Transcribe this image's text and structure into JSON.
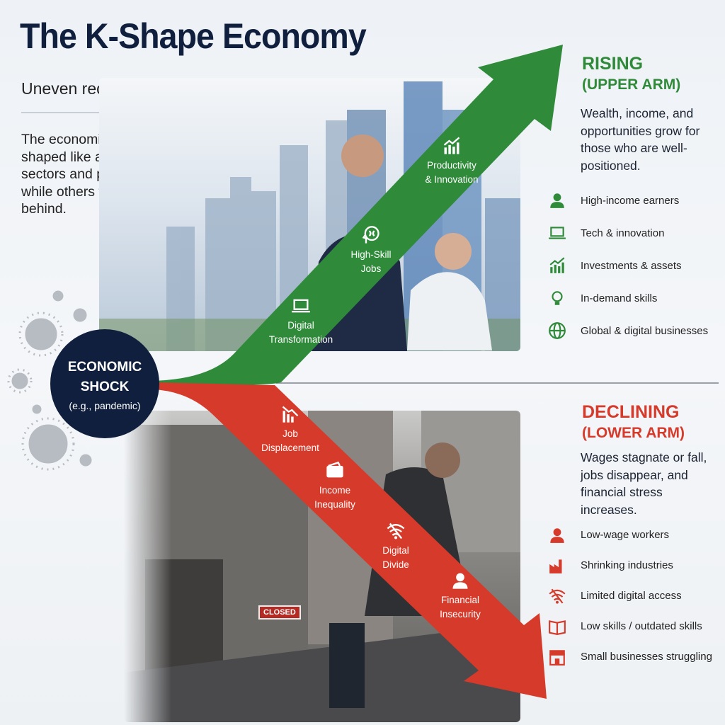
{
  "header": {
    "title": "The K-Shape Economy",
    "subtitle": "Uneven recovery. Diverging fortunes.",
    "intro": "The economic recovery is shaped like a “K” — some sectors and people thrive, while others fall further behind."
  },
  "shock": {
    "line1": "ECONOMIC",
    "line2": "SHOCK",
    "sub": "(e.g., pandemic)"
  },
  "upper_arm": {
    "labels": [
      {
        "text1": "Digital",
        "text2": "Transformation",
        "icon": "laptop-icon"
      },
      {
        "text1": "High-Skill",
        "text2": "Jobs",
        "icon": "brain-head-icon"
      },
      {
        "text1": "Productivity",
        "text2": "& Innovation",
        "icon": "growth-chart-icon"
      }
    ]
  },
  "lower_arm": {
    "labels": [
      {
        "text1": "Job",
        "text2": "Displacement",
        "icon": "declining-chart-icon"
      },
      {
        "text1": "Income",
        "text2": "Inequality",
        "icon": "wallet-icon"
      },
      {
        "text1": "Digital",
        "text2": "Divide",
        "icon": "no-wifi-icon"
      },
      {
        "text1": "Financial",
        "text2": "Insecurity",
        "icon": "person-icon"
      }
    ]
  },
  "photo_sign": "CLOSED",
  "rising": {
    "title": "RISING",
    "subtitle": "(UPPER ARM)",
    "description": "Wealth, income, and opportunities grow for those who are well-positioned.",
    "items": [
      {
        "label": "High-income earners",
        "icon": "person-icon"
      },
      {
        "label": "Tech & innovation",
        "icon": "laptop-icon"
      },
      {
        "label": "Investments & assets",
        "icon": "growth-chart-icon"
      },
      {
        "label": "In-demand skills",
        "icon": "lightbulb-icon"
      },
      {
        "label": "Global & digital businesses",
        "icon": "globe-icon"
      }
    ]
  },
  "declining": {
    "title": "DECLINING",
    "subtitle": "(LOWER ARM)",
    "description": "Wages stagnate or fall, jobs disappear, and financial stress increases.",
    "items": [
      {
        "label": "Low-wage workers",
        "icon": "person-icon"
      },
      {
        "label": "Shrinking industries",
        "icon": "factory-icon"
      },
      {
        "label": "Limited digital access",
        "icon": "no-wifi-icon"
      },
      {
        "label": "Low skills / outdated skills",
        "icon": "book-icon"
      },
      {
        "label": "Small businesses struggling",
        "icon": "storefront-icon"
      }
    ]
  },
  "colors": {
    "green": "#2f8a3a",
    "red": "#d63a2a",
    "navy": "#0f1f3d"
  }
}
